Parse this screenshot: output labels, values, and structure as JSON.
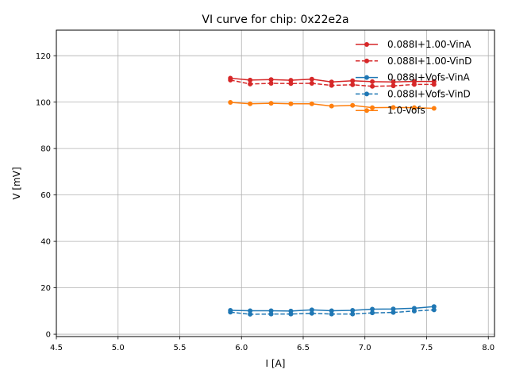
{
  "chart_data": {
    "type": "line",
    "title": "VI curve for chip: 0x22e2a",
    "xlabel": "I [A]",
    "ylabel": "V [mV]",
    "xlim": [
      4.5,
      8.05
    ],
    "ylim": [
      -1,
      131
    ],
    "xticks": [
      4.5,
      5.0,
      5.5,
      6.0,
      6.5,
      7.0,
      7.5,
      8.0
    ],
    "xtick_labels": [
      "4.5",
      "5.0",
      "5.5",
      "6.0",
      "6.5",
      "7.0",
      "7.5",
      "8.0"
    ],
    "yticks": [
      0,
      20,
      40,
      60,
      80,
      100,
      120
    ],
    "ytick_labels": [
      "0",
      "20",
      "40",
      "60",
      "80",
      "100",
      "120"
    ],
    "grid": true,
    "legend_position": "top-right",
    "x": [
      5.91,
      6.07,
      6.24,
      6.4,
      6.57,
      6.73,
      6.9,
      7.06,
      7.23,
      7.4,
      7.56
    ],
    "series": [
      {
        "name": "0.088I+1.00-VinA",
        "color": "#d62728",
        "dash": "solid",
        "values": [
          110.3,
          109.5,
          109.7,
          109.4,
          109.9,
          108.7,
          109.2,
          108.8,
          108.7,
          108.9,
          108.9
        ]
      },
      {
        "name": "0.088I+1.00-VinD",
        "color": "#d62728",
        "dash": "dashed",
        "values": [
          109.5,
          107.8,
          108.1,
          108.0,
          108.1,
          107.2,
          107.5,
          106.8,
          107.0,
          107.6,
          107.6
        ]
      },
      {
        "name": "0.088I+Vofs-VinA",
        "color": "#1f77b4",
        "dash": "solid",
        "values": [
          10.3,
          10.1,
          10.1,
          10.0,
          10.5,
          10.1,
          10.3,
          10.8,
          10.9,
          11.2,
          11.9
        ]
      },
      {
        "name": "0.088I+Vofs-VinD",
        "color": "#1f77b4",
        "dash": "dashed",
        "values": [
          9.5,
          8.6,
          8.7,
          8.7,
          9.0,
          8.7,
          8.7,
          9.2,
          9.4,
          10.0,
          10.5
        ]
      },
      {
        "name": "1.0-Vofs",
        "color": "#ff7f0e",
        "dash": "solid",
        "values": [
          99.9,
          99.3,
          99.5,
          99.3,
          99.3,
          98.3,
          98.6,
          97.6,
          97.7,
          97.6,
          97.3
        ]
      }
    ]
  }
}
